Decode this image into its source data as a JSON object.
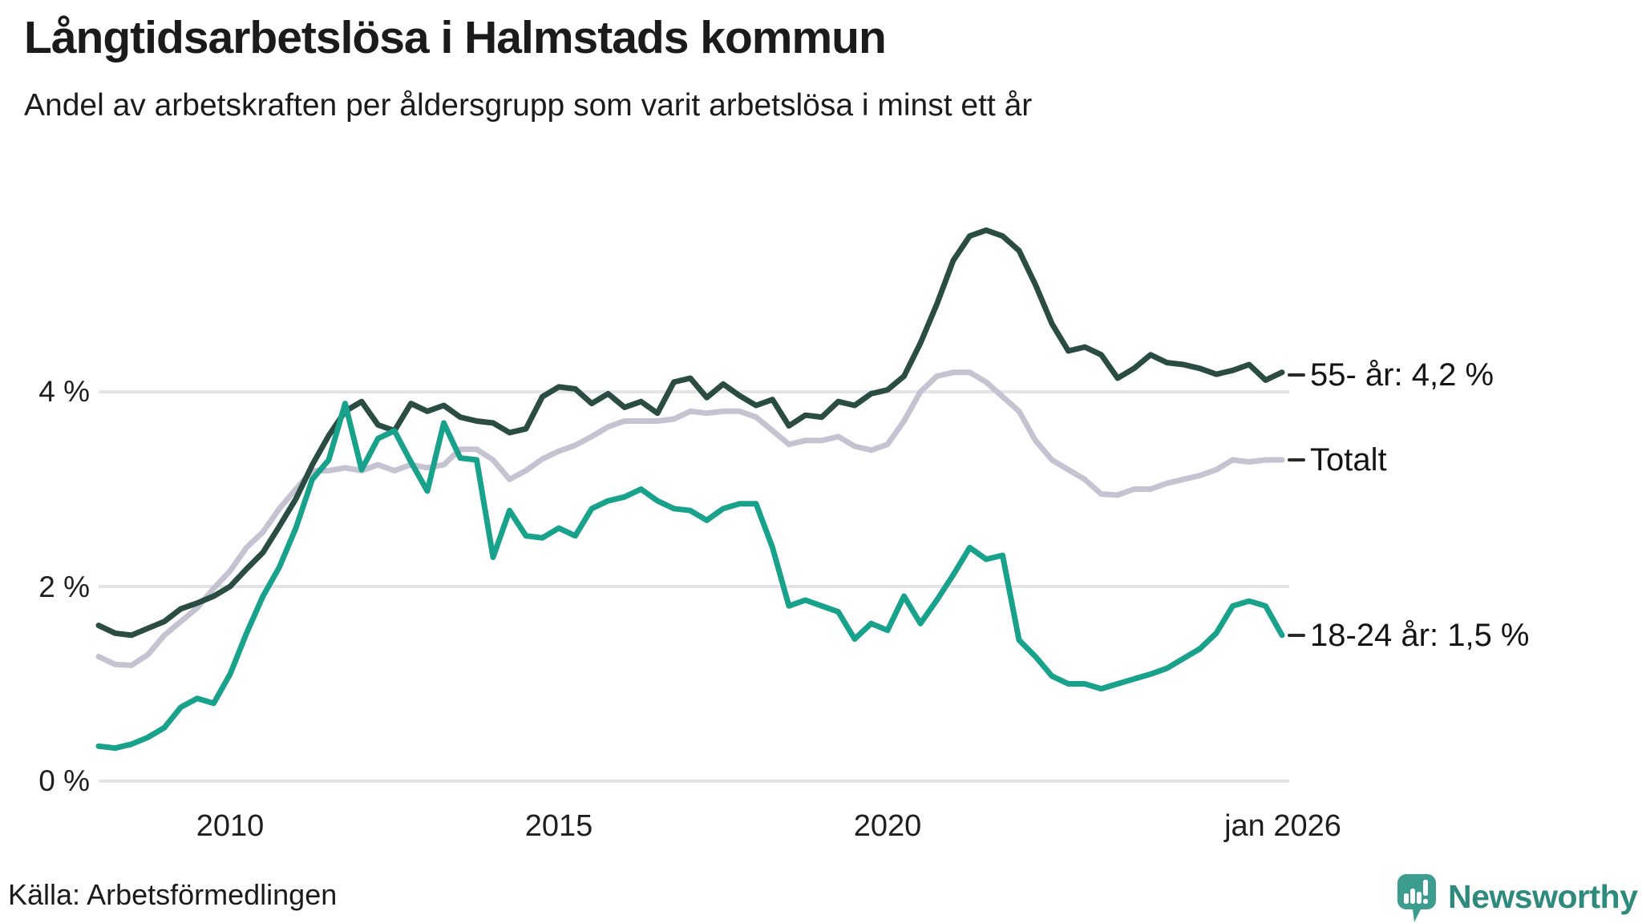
{
  "chart_data": {
    "type": "line",
    "title": "Långtidsarbetslösa i Halmstads kommun",
    "subtitle": "Andel av arbetskraften per åldersgrupp som varit arbetslösa i minst ett år",
    "xlabel": "",
    "ylabel": "",
    "grid": "horizontal",
    "x_start": 2008.0,
    "x_step": 0.25,
    "xlim": [
      2008,
      2026.1
    ],
    "ylim": [
      0,
      5.9
    ],
    "x_ticks": [
      {
        "label": "2010",
        "t": 2010
      },
      {
        "label": "2015",
        "t": 2015
      },
      {
        "label": "2020",
        "t": 2020
      },
      {
        "label": "jan 2026",
        "t": 2026
      }
    ],
    "y_ticks": [
      {
        "label": "0 %",
        "v": 0
      },
      {
        "label": "2 %",
        "v": 2
      },
      {
        "label": "4 %",
        "v": 4
      }
    ],
    "gridline_color": "#E4E3E9",
    "series": [
      {
        "name": "55- år",
        "color": "#2B4C43",
        "end_label": "55- år: 4,2 %",
        "end_value": 4.2,
        "values": [
          1.6,
          1.52,
          1.5,
          1.57,
          1.64,
          1.77,
          1.83,
          1.9,
          2.0,
          2.18,
          2.35,
          2.62,
          2.9,
          3.25,
          3.55,
          3.8,
          3.9,
          3.66,
          3.6,
          3.88,
          3.8,
          3.86,
          3.74,
          3.7,
          3.68,
          3.58,
          3.62,
          3.95,
          4.05,
          4.03,
          3.88,
          3.98,
          3.84,
          3.9,
          3.78,
          4.1,
          4.14,
          3.94,
          4.08,
          3.96,
          3.86,
          3.92,
          3.65,
          3.76,
          3.74,
          3.9,
          3.86,
          3.98,
          4.02,
          4.16,
          4.5,
          4.9,
          5.35,
          5.6,
          5.66,
          5.6,
          5.45,
          5.1,
          4.7,
          4.42,
          4.46,
          4.38,
          4.14,
          4.24,
          4.38,
          4.3,
          4.28,
          4.24,
          4.18,
          4.22,
          4.28,
          4.12,
          4.2
        ]
      },
      {
        "name": "Totalt",
        "color": "#C5C3D2",
        "end_label": "Totalt",
        "end_value": 3.3,
        "values": [
          1.28,
          1.2,
          1.19,
          1.3,
          1.5,
          1.64,
          1.78,
          1.98,
          2.16,
          2.4,
          2.56,
          2.8,
          3.0,
          3.19,
          3.19,
          3.22,
          3.19,
          3.25,
          3.19,
          3.25,
          3.22,
          3.25,
          3.41,
          3.41,
          3.3,
          3.1,
          3.19,
          3.31,
          3.39,
          3.45,
          3.54,
          3.64,
          3.7,
          3.7,
          3.7,
          3.72,
          3.8,
          3.78,
          3.8,
          3.8,
          3.74,
          3.6,
          3.46,
          3.5,
          3.5,
          3.54,
          3.44,
          3.4,
          3.46,
          3.7,
          4.0,
          4.16,
          4.2,
          4.2,
          4.1,
          3.95,
          3.8,
          3.5,
          3.3,
          3.2,
          3.1,
          2.95,
          2.94,
          3.0,
          3.0,
          3.06,
          3.1,
          3.14,
          3.2,
          3.3,
          3.28,
          3.3,
          3.3
        ]
      },
      {
        "name": "18-24 år",
        "color": "#18A28B",
        "end_label": "18-24 år: 1,5 %",
        "end_value": 1.5,
        "values": [
          0.36,
          0.34,
          0.38,
          0.45,
          0.55,
          0.76,
          0.85,
          0.8,
          1.1,
          1.52,
          1.9,
          2.2,
          2.6,
          3.1,
          3.3,
          3.88,
          3.2,
          3.52,
          3.6,
          3.28,
          2.98,
          3.68,
          3.32,
          3.3,
          2.3,
          2.78,
          2.52,
          2.5,
          2.6,
          2.52,
          2.8,
          2.88,
          2.92,
          3.0,
          2.88,
          2.8,
          2.78,
          2.68,
          2.8,
          2.85,
          2.85,
          2.4,
          1.8,
          1.86,
          1.8,
          1.74,
          1.46,
          1.62,
          1.55,
          1.9,
          1.62,
          1.86,
          2.12,
          2.4,
          2.28,
          2.32,
          1.45,
          1.28,
          1.08,
          1.0,
          1.0,
          0.95,
          1.0,
          1.05,
          1.1,
          1.16,
          1.26,
          1.36,
          1.52,
          1.8,
          1.85,
          1.8,
          1.5
        ]
      }
    ]
  },
  "footer": {
    "source": "Källa: Arbetsförmedlingen",
    "brand": "Newsworthy",
    "brand_text_color": "#2E8A7C",
    "brand_icon_color": "#3C9D8E"
  }
}
